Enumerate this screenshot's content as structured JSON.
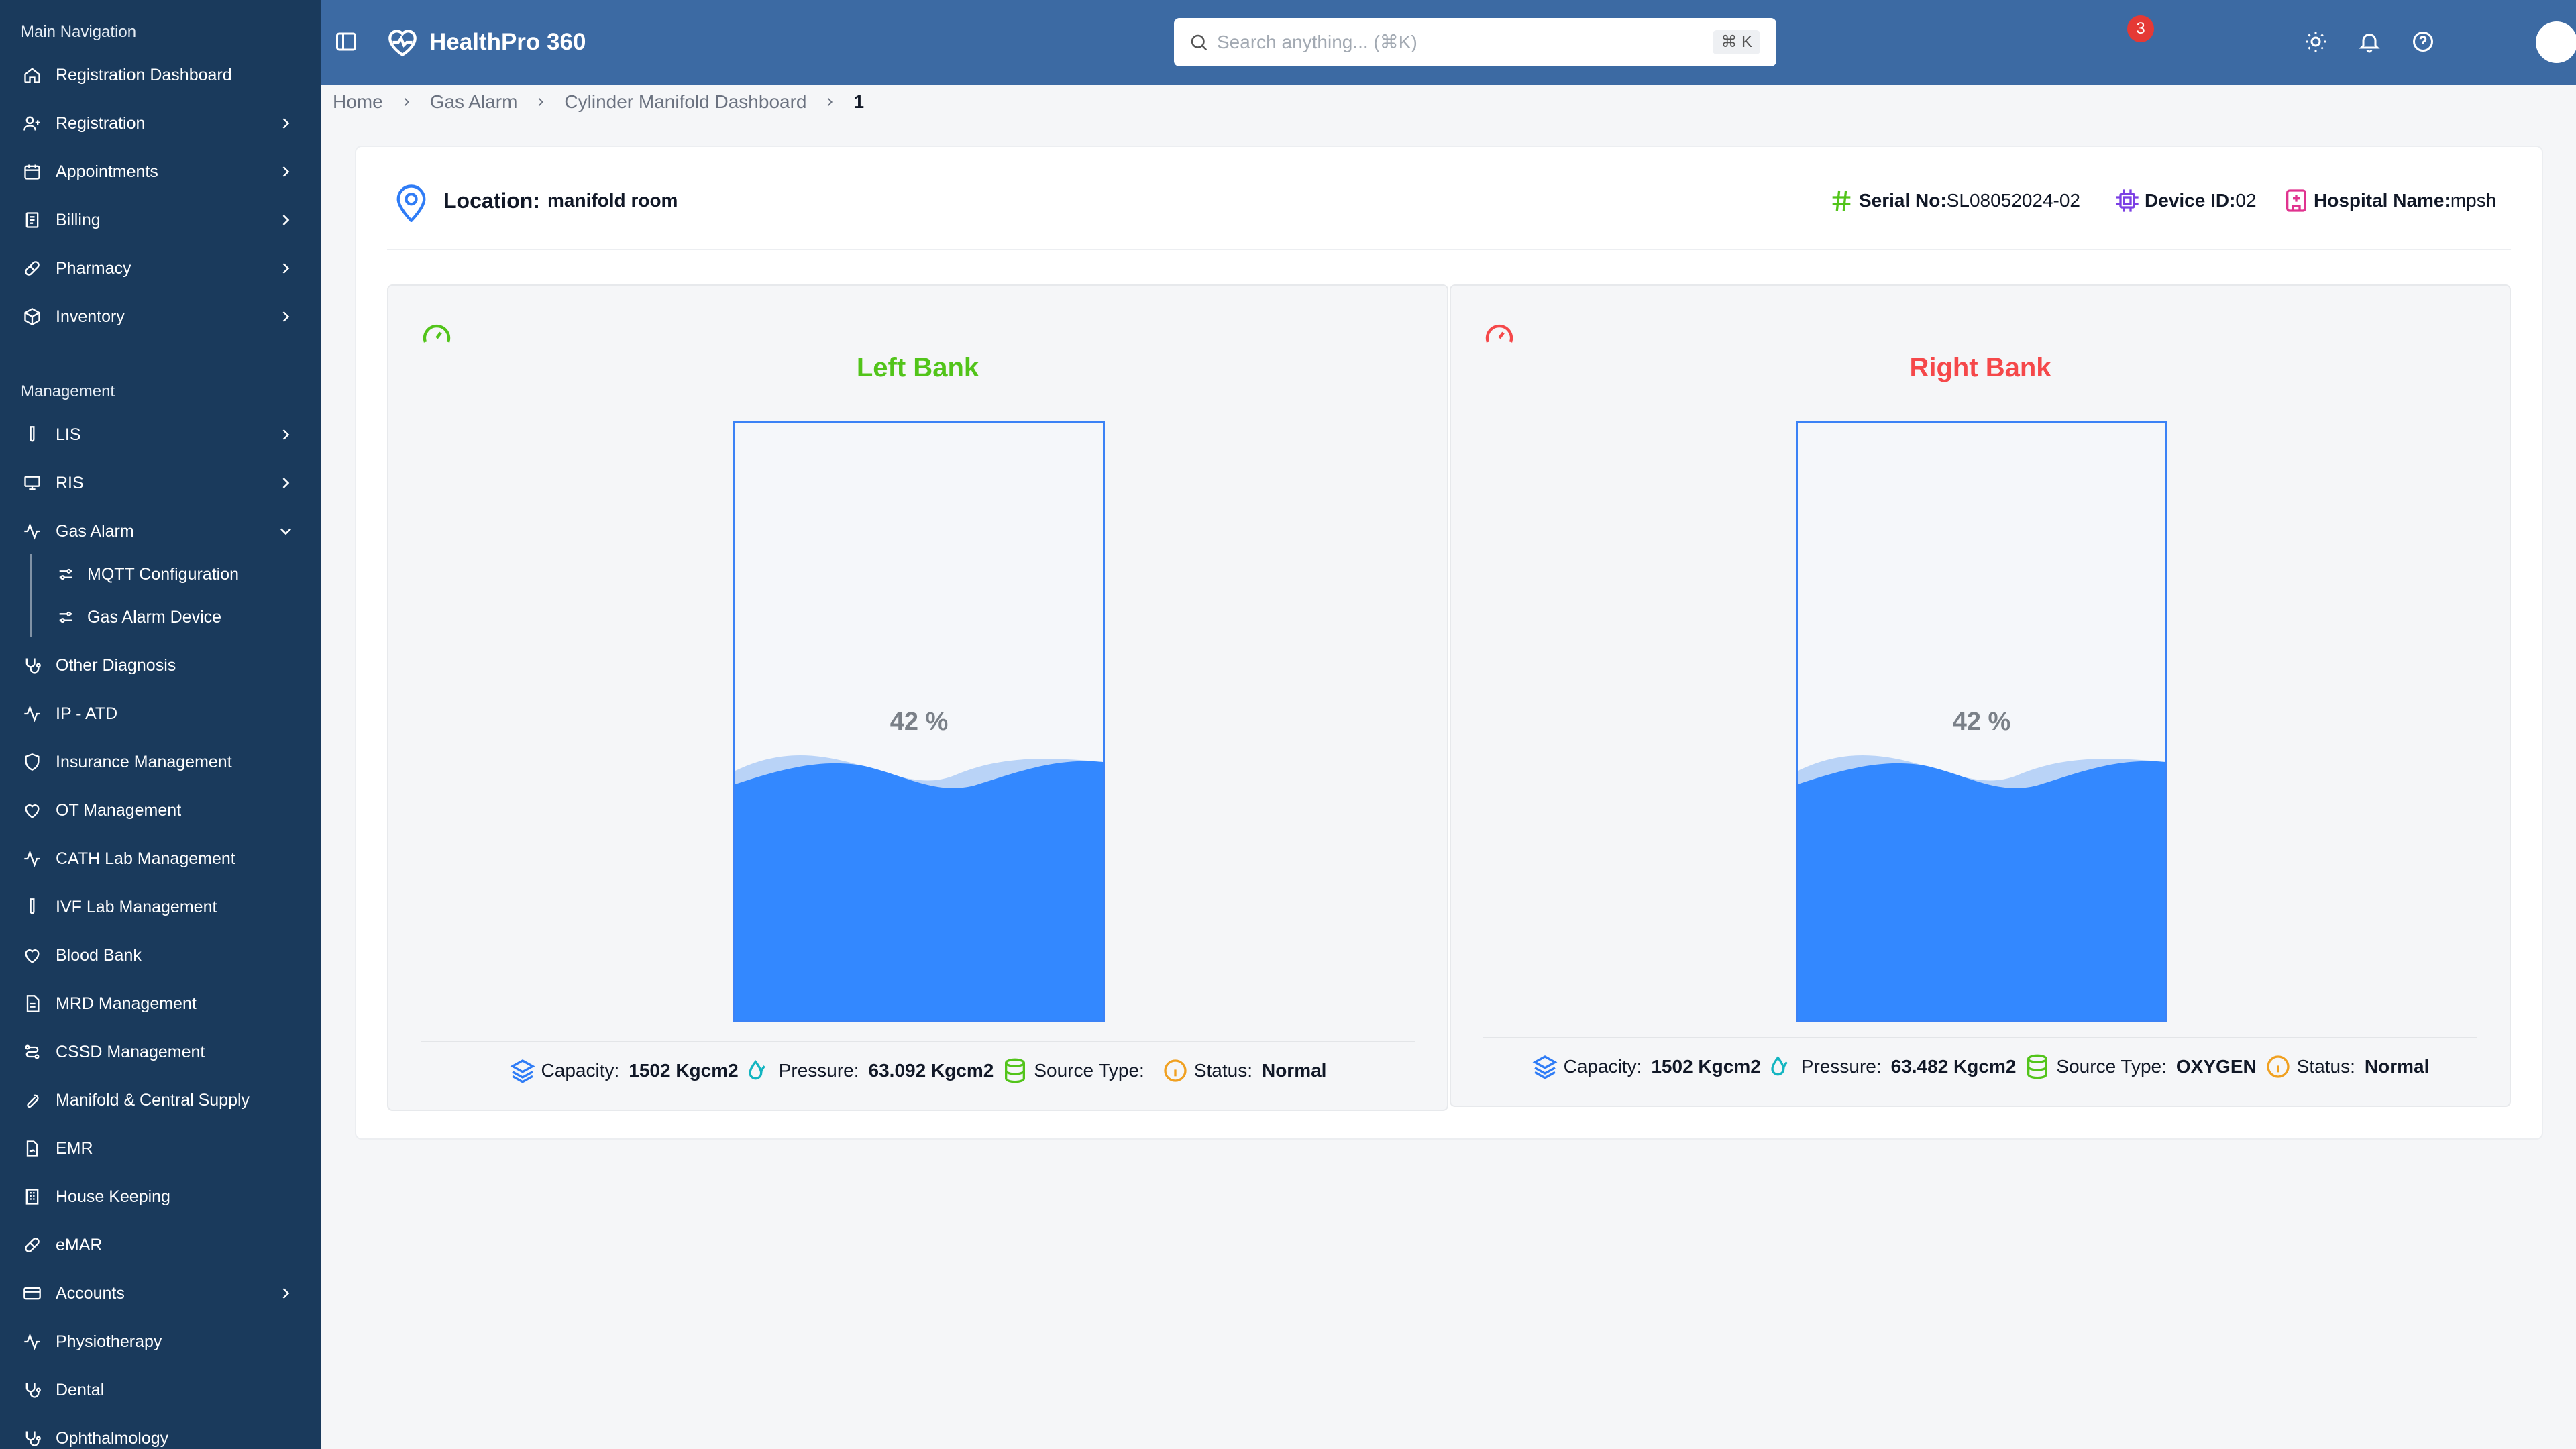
{
  "app": {
    "name": "HealthPro 360"
  },
  "search": {
    "placeholder": "Search anything... (⌘K)",
    "shortcut": "⌘ K"
  },
  "notifications": {
    "count": "3"
  },
  "sidebar": {
    "section_main": "Main Navigation",
    "section_management": "Management",
    "main_items": [
      {
        "label": "Registration Dashboard",
        "icon": "home-icon"
      },
      {
        "label": "Registration",
        "icon": "user-plus-icon"
      },
      {
        "label": "Appointments",
        "icon": "calendar-icon"
      },
      {
        "label": "Billing",
        "icon": "receipt-icon"
      },
      {
        "label": "Pharmacy",
        "icon": "pill-icon"
      },
      {
        "label": "Inventory",
        "icon": "box-icon"
      }
    ],
    "mgmt_items": [
      {
        "label": "LIS",
        "icon": "test-tube-icon"
      },
      {
        "label": "RIS",
        "icon": "monitor-icon"
      },
      {
        "label": "Gas Alarm",
        "icon": "activity-icon"
      },
      {
        "label": "Other Diagnosis",
        "icon": "stethoscope-icon"
      },
      {
        "label": "IP - ATD",
        "icon": "activity-icon"
      },
      {
        "label": "Insurance Management",
        "icon": "shield-icon"
      },
      {
        "label": "OT Management",
        "icon": "heart-icon"
      },
      {
        "label": "CATH Lab Management",
        "icon": "activity-icon"
      },
      {
        "label": "IVF Lab Management",
        "icon": "test-tube-icon"
      },
      {
        "label": "Blood Bank",
        "icon": "heart-icon"
      },
      {
        "label": "MRD Management",
        "icon": "file-icon"
      },
      {
        "label": "CSSD Management",
        "icon": "route-icon"
      },
      {
        "label": "Manifold & Central Supply",
        "icon": "wrench-icon"
      },
      {
        "label": "EMR",
        "icon": "file-signature-icon"
      },
      {
        "label": "House Keeping",
        "icon": "building-icon"
      },
      {
        "label": "eMAR",
        "icon": "pill-icon"
      },
      {
        "label": "Accounts",
        "icon": "credit-card-icon"
      },
      {
        "label": "Physiotherapy",
        "icon": "activity-icon"
      },
      {
        "label": "Dental",
        "icon": "stethoscope-icon"
      },
      {
        "label": "Ophthalmology",
        "icon": "stethoscope-icon"
      }
    ],
    "gas_alarm_sub": [
      {
        "label": "MQTT Configuration",
        "icon": "sliders-icon"
      },
      {
        "label": "Gas Alarm Device",
        "icon": "sliders-icon"
      }
    ]
  },
  "breadcrumb": [
    "Home",
    "Gas Alarm",
    "Cylinder Manifold Dashboard",
    "1"
  ],
  "device": {
    "location_label": "Location:",
    "location": "manifold room",
    "serial_label": "Serial No:",
    "serial": "SL08052024-02",
    "device_id_label": "Device ID:",
    "device_id": "02",
    "hospital_label": "Hospital Name:",
    "hospital": "mpsh"
  },
  "banks": [
    {
      "title": "Left Bank",
      "title_color": "#52c41a",
      "gauge_color": "#52c41a",
      "level": 42,
      "level_text": "42 %",
      "capacity_label": "Capacity:",
      "capacity": "1502 Kgcm2",
      "pressure_label": "Pressure:",
      "pressure": "63.092 Kgcm2",
      "source_label": "Source Type:",
      "source": "",
      "status_label": "Status:",
      "status": "Normal"
    },
    {
      "title": "Right Bank",
      "title_color": "#f5484a",
      "gauge_color": "#f5484a",
      "level": 42,
      "level_text": "42 %",
      "capacity_label": "Capacity:",
      "capacity": "1502 Kgcm2",
      "pressure_label": "Pressure:",
      "pressure": "63.482 Kgcm2",
      "source_label": "Source Type:",
      "source": "OXYGEN",
      "status_label": "Status:",
      "status": "Normal"
    }
  ],
  "colors": {
    "sidebar_bg": "#1a3a5c",
    "topbar_bg": "#3c6aa3",
    "water": "#3388ff",
    "water_light": "#b9d3f7",
    "tank_border": "#3b82f6"
  }
}
